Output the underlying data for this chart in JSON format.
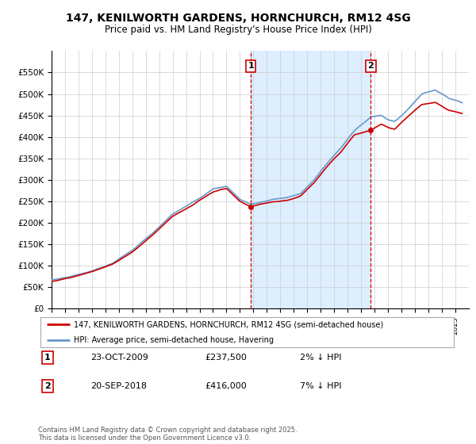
{
  "title": "147, KENILWORTH GARDENS, HORNCHURCH, RM12 4SG",
  "subtitle": "Price paid vs. HM Land Registry's House Price Index (HPI)",
  "ylabel_ticks": [
    "£0",
    "£50K",
    "£100K",
    "£150K",
    "£200K",
    "£250K",
    "£300K",
    "£350K",
    "£400K",
    "£450K",
    "£500K",
    "£550K"
  ],
  "ylim": [
    0,
    600000
  ],
  "ytick_vals": [
    0,
    50000,
    100000,
    150000,
    200000,
    250000,
    300000,
    350000,
    400000,
    450000,
    500000,
    550000
  ],
  "hpi_color": "#6699cc",
  "price_color": "#cc0000",
  "background_color": "#ffffff",
  "plot_bg_color": "#ffffff",
  "shaded_region_color": "#ddeeff",
  "marker1_date_x": 2009.81,
  "marker1_price": 237500,
  "marker2_date_x": 2018.72,
  "marker2_price": 416000,
  "legend1_text": "147, KENILWORTH GARDENS, HORNCHURCH, RM12 4SG (semi-detached house)",
  "legend2_text": "HPI: Average price, semi-detached house, Havering",
  "annotation1_date": "23-OCT-2009",
  "annotation1_price": "£237,500",
  "annotation1_diff": "2% ↓ HPI",
  "annotation2_date": "20-SEP-2018",
  "annotation2_price": "£416,000",
  "annotation2_diff": "7% ↓ HPI",
  "footer": "Contains HM Land Registry data © Crown copyright and database right 2025.\nThis data is licensed under the Open Government Licence v3.0.",
  "xmin": 1995,
  "xmax": 2026
}
